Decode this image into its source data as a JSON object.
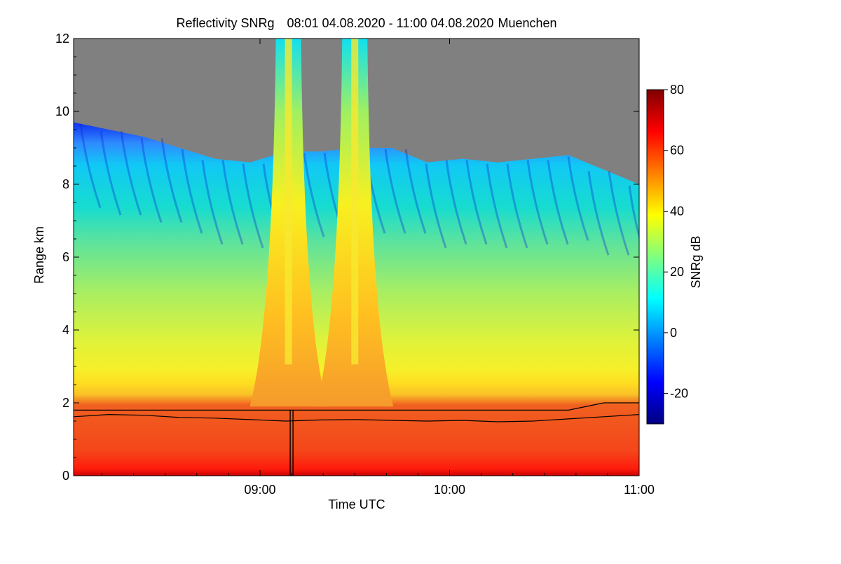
{
  "chart_data": {
    "type": "heatmap",
    "title": "Reflectivity SNRg",
    "time_range": "08:01 04.08.2020 - 11:00 04.08.2020",
    "location": "Muenchen",
    "xlabel": "Time UTC",
    "ylabel": "Range km",
    "colorbar_label": "SNRg dB",
    "x_range": [
      "08:01",
      "11:00"
    ],
    "x_ticks": [
      "09:00",
      "10:00",
      "11:00"
    ],
    "y_range": [
      0,
      12
    ],
    "y_ticks": [
      "0",
      "2",
      "4",
      "6",
      "8",
      "10",
      "12"
    ],
    "colorbar_range": [
      -30,
      80
    ],
    "colorbar_ticks": [
      "-20",
      "0",
      "20",
      "40",
      "60",
      "80"
    ],
    "colormap": "jet",
    "no_signal_color": "#808080",
    "features": {
      "signal_top_km": [
        9.7,
        9.5,
        9.3,
        9.0,
        8.7,
        8.6,
        8.9,
        8.9,
        9.0,
        9.0,
        8.6,
        8.7,
        8.6,
        8.7,
        8.8,
        8.4,
        8.0
      ],
      "towers": [
        {
          "center": "09:09",
          "peak_snr_db": 55
        },
        {
          "center": "09:30",
          "peak_snr_db": 55
        }
      ],
      "line_lower_km": [
        1.62,
        1.68,
        1.66,
        1.6,
        1.58,
        1.54,
        1.5,
        1.53,
        1.54,
        1.52,
        1.5,
        1.52,
        1.48,
        1.5,
        1.56,
        1.62,
        1.68
      ],
      "line_upper_km": [
        1.8,
        1.8,
        1.8,
        1.8,
        1.8,
        1.8,
        1.8,
        1.8,
        1.8,
        1.8,
        1.8,
        1.8,
        1.8,
        1.8,
        1.8,
        2.0,
        2.0
      ],
      "gap_time": "09:10"
    }
  }
}
